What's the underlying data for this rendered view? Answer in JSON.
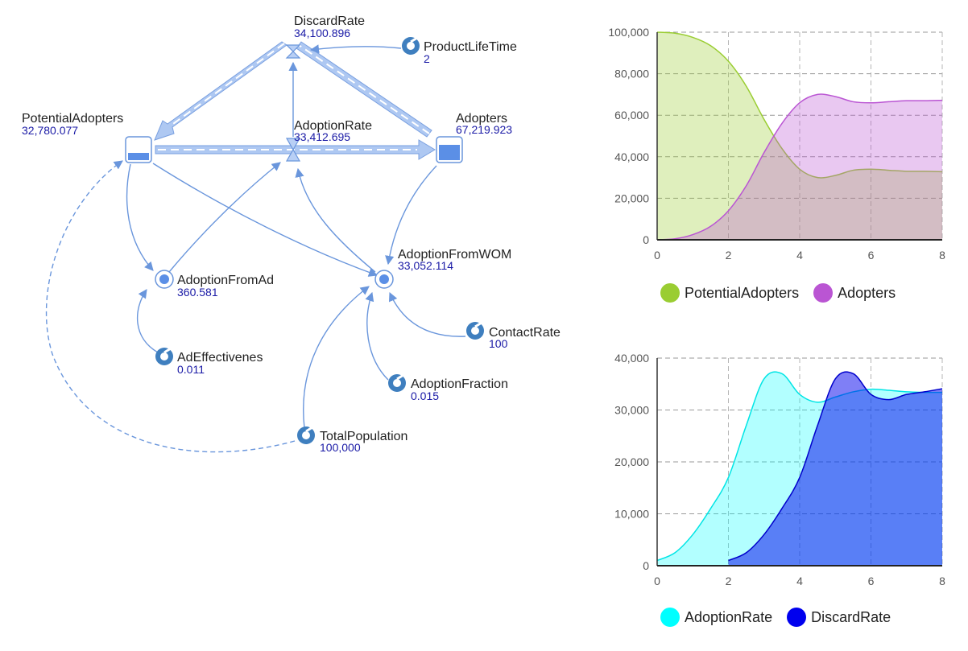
{
  "diagram": {
    "nodes": {
      "discard_rate": {
        "name": "DiscardRate",
        "value": "34,100.896"
      },
      "product_life_time": {
        "name": "ProductLifeTime",
        "value": "2"
      },
      "potential_adopters": {
        "name": "PotentialAdopters",
        "value": "32,780.077"
      },
      "adoption_rate": {
        "name": "AdoptionRate",
        "value": "33,412.695"
      },
      "adopters": {
        "name": "Adopters",
        "value": "67,219.923"
      },
      "adoption_from_ad": {
        "name": "AdoptionFromAd",
        "value": "360.581"
      },
      "adoption_from_wom": {
        "name": "AdoptionFromWOM",
        "value": "33,052.114"
      },
      "ad_effectiveness": {
        "name": "AdEffectivenes",
        "value": "0.011"
      },
      "contact_rate": {
        "name": "ContactRate",
        "value": "100"
      },
      "adoption_fraction": {
        "name": "AdoptionFraction",
        "value": "0.015"
      },
      "total_population": {
        "name": "TotalPopulation",
        "value": "100,000"
      }
    },
    "colors": {
      "flow": "#7aa0e0",
      "link": "#6a96dc",
      "icon": "#3f7fbf",
      "value": "#1a1aa6"
    }
  },
  "chart_data": [
    {
      "type": "area",
      "xlim": [
        0,
        8
      ],
      "ylim": [
        0,
        100000
      ],
      "x_ticks": [
        0,
        2,
        4,
        6,
        8
      ],
      "y_ticks": [
        0,
        20000,
        40000,
        60000,
        80000,
        100000
      ],
      "y_tick_labels": [
        "0",
        "20,000",
        "40,000",
        "60,000",
        "80,000",
        "100,000"
      ],
      "grid": true,
      "legend_position": "bottom",
      "x": [
        0,
        0.5,
        1,
        1.5,
        2,
        2.5,
        3,
        3.5,
        4,
        4.5,
        5,
        5.5,
        6,
        6.5,
        7,
        7.5,
        8
      ],
      "series": [
        {
          "name": "PotentialAdopters",
          "color": "#9acd32",
          "values": [
            100000,
            99500,
            97500,
            93500,
            86000,
            74000,
            58000,
            44000,
            34000,
            30000,
            31000,
            33500,
            34000,
            33500,
            33000,
            33000,
            32800
          ]
        },
        {
          "name": "Adopters",
          "color": "#ba55d3",
          "values": [
            0,
            500,
            2500,
            6500,
            14000,
            26000,
            42000,
            56000,
            66000,
            70000,
            69000,
            66500,
            66000,
            66500,
            67000,
            67000,
            67200
          ]
        }
      ]
    },
    {
      "type": "area",
      "xlim": [
        0,
        8
      ],
      "ylim": [
        0,
        40000
      ],
      "x_ticks": [
        0,
        2,
        4,
        6,
        8
      ],
      "y_ticks": [
        0,
        10000,
        20000,
        30000,
        40000
      ],
      "y_tick_labels": [
        "0",
        "10,000",
        "20,000",
        "30,000",
        "40,000"
      ],
      "grid": true,
      "legend_position": "bottom",
      "series": [
        {
          "name": "AdoptionRate",
          "color": "#00ffff",
          "x": [
            0,
            0.5,
            1,
            1.5,
            2,
            2.5,
            3,
            3.5,
            4,
            4.5,
            5,
            5.5,
            6,
            6.5,
            7,
            7.5,
            8
          ],
          "values": [
            1000,
            2500,
            6000,
            11000,
            17000,
            27000,
            36000,
            37000,
            33000,
            31500,
            32500,
            33500,
            34000,
            33800,
            33500,
            33400,
            33400
          ]
        },
        {
          "name": "DiscardRate",
          "color": "#0000ee",
          "x": [
            2,
            2.5,
            3,
            3.5,
            4,
            4.5,
            5,
            5.5,
            6,
            6.5,
            7,
            7.5,
            8
          ],
          "values": [
            1000,
            2500,
            6000,
            11000,
            17000,
            27000,
            36000,
            37000,
            33000,
            32000,
            33000,
            33500,
            34100
          ]
        }
      ]
    }
  ]
}
